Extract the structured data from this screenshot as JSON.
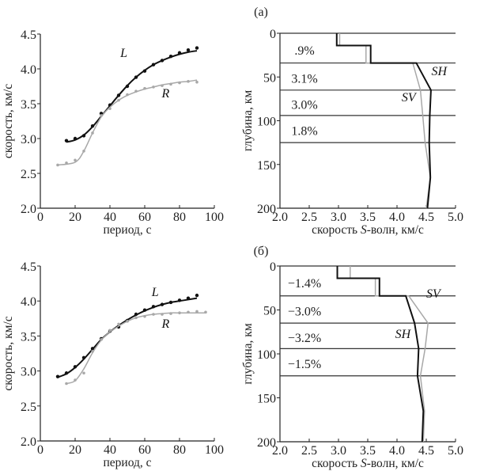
{
  "panels": [
    "(а)",
    "(б)"
  ],
  "chart_data": [
    {
      "type": "scatter",
      "panel": "(а)",
      "xlabel": "период, с",
      "ylabel": "скорость, км/с",
      "xlim": [
        0,
        100
      ],
      "ylim": [
        2.0,
        4.5
      ],
      "xticks": [
        "0",
        "20",
        "40",
        "60",
        "80",
        "100"
      ],
      "yticks": [
        "2.0",
        "2.5",
        "3.0",
        "3.5",
        "4.0",
        "4.5"
      ],
      "series": [
        {
          "name": "L",
          "color": "#111111",
          "x": [
            15,
            20,
            25,
            30,
            35,
            40,
            45,
            50,
            55,
            60,
            65,
            70,
            75,
            80,
            85,
            90
          ],
          "y": [
            2.97,
            3.0,
            3.04,
            3.18,
            3.36,
            3.48,
            3.62,
            3.75,
            3.88,
            3.97,
            4.06,
            4.12,
            4.18,
            4.23,
            4.27,
            4.3
          ],
          "fit_x": [
            15,
            20,
            25,
            30,
            35,
            40,
            45,
            50,
            55,
            60,
            65,
            70,
            75,
            80,
            85,
            90
          ],
          "fit_y": [
            2.95,
            2.98,
            3.05,
            3.17,
            3.32,
            3.47,
            3.62,
            3.76,
            3.88,
            3.98,
            4.06,
            4.12,
            4.17,
            4.21,
            4.24,
            4.26
          ]
        },
        {
          "name": "R",
          "color": "#a8a8a8",
          "x": [
            10,
            15,
            20,
            25,
            30,
            35,
            40,
            45,
            50,
            55,
            60,
            65,
            70,
            75,
            80,
            85,
            90
          ],
          "y": [
            2.62,
            2.65,
            2.69,
            2.82,
            3.08,
            3.33,
            3.43,
            3.55,
            3.63,
            3.68,
            3.72,
            3.74,
            3.76,
            3.78,
            3.8,
            3.82,
            3.81
          ],
          "fit_x": [
            10,
            20,
            25,
            30,
            35,
            40,
            45,
            50,
            55,
            60,
            65,
            70,
            75,
            80,
            85,
            90
          ],
          "fit_y": [
            2.62,
            2.66,
            2.82,
            3.08,
            3.31,
            3.45,
            3.55,
            3.62,
            3.67,
            3.71,
            3.74,
            3.77,
            3.79,
            3.81,
            3.82,
            3.84
          ]
        }
      ],
      "annotations": [
        {
          "text": "L",
          "x": 48,
          "y": 4.17
        },
        {
          "text": "R",
          "x": 72,
          "y": 3.59
        }
      ]
    },
    {
      "type": "line",
      "panel": "(а)",
      "xlabel": "скорость S-волн, км/с",
      "ylabel": "глубина, км",
      "xlim": [
        2.0,
        5.0
      ],
      "ylim": [
        0,
        200
      ],
      "y_inverted": true,
      "xticks": [
        "2.0",
        "2.5",
        "3.0",
        "3.5",
        "4.0",
        "4.5",
        "5.0"
      ],
      "yticks": [
        "0",
        "50",
        "100",
        "150",
        "200"
      ],
      "layer_boundaries": [
        0,
        34,
        65,
        94,
        125
      ],
      "layer_labels": [
        {
          "text": ".9%",
          "depth": 19
        },
        {
          "text": "3.1%",
          "depth": 51
        },
        {
          "text": "3.0%",
          "depth": 81
        },
        {
          "text": "1.8%",
          "depth": 111
        }
      ],
      "series": [
        {
          "name": "SV",
          "color": "#a8a8a8",
          "velocity": [
            3.02,
            3.02,
            3.47,
            3.47,
            4.27,
            4.4,
            4.44,
            4.48,
            4.57,
            4.5
          ],
          "depth": [
            0,
            14,
            14,
            34,
            34,
            65,
            94,
            125,
            165,
            200
          ]
        },
        {
          "name": "SH",
          "color": "#111111",
          "velocity": [
            2.97,
            2.97,
            3.55,
            3.55,
            4.33,
            4.58,
            4.56,
            4.55,
            4.57,
            4.52
          ],
          "depth": [
            0,
            14,
            14,
            34,
            34,
            65,
            94,
            125,
            165,
            200
          ]
        }
      ],
      "annotations": [
        {
          "text": "SH",
          "x": 4.72,
          "y": 48
        },
        {
          "text": "SV",
          "x": 4.2,
          "y": 78
        }
      ]
    },
    {
      "type": "scatter",
      "panel": "(б)",
      "xlabel": "период, с",
      "ylabel": "скорость, км/с",
      "xlim": [
        0,
        100
      ],
      "ylim": [
        2.0,
        4.5
      ],
      "xticks": [
        "0",
        "20",
        "40",
        "60",
        "80",
        "100"
      ],
      "yticks": [
        "2.0",
        "2.5",
        "3.0",
        "3.5",
        "4.0",
        "4.5"
      ],
      "series": [
        {
          "name": "L",
          "color": "#111111",
          "x": [
            10,
            15,
            20,
            25,
            30,
            35,
            40,
            45,
            50,
            55,
            60,
            65,
            70,
            75,
            80,
            85,
            90
          ],
          "y": [
            2.92,
            2.97,
            3.06,
            3.19,
            3.32,
            3.46,
            3.57,
            3.63,
            3.72,
            3.81,
            3.87,
            3.92,
            3.95,
            3.98,
            4.01,
            4.04,
            4.08
          ],
          "fit_x": [
            10,
            15,
            20,
            25,
            30,
            35,
            40,
            45,
            50,
            55,
            60,
            65,
            70,
            75,
            80,
            85,
            90
          ],
          "fit_y": [
            2.91,
            2.96,
            3.05,
            3.17,
            3.31,
            3.45,
            3.56,
            3.65,
            3.73,
            3.8,
            3.86,
            3.91,
            3.95,
            3.98,
            4.0,
            4.02,
            4.04
          ]
        },
        {
          "name": "R",
          "color": "#a8a8a8",
          "x": [
            15,
            20,
            25,
            30,
            35,
            40,
            45,
            50,
            55,
            60,
            65,
            70,
            75,
            80,
            85,
            90,
            95
          ],
          "y": [
            2.82,
            2.87,
            2.97,
            3.28,
            3.45,
            3.58,
            3.67,
            3.71,
            3.76,
            3.78,
            3.81,
            3.81,
            3.82,
            3.83,
            3.84,
            3.85,
            3.84
          ],
          "fit_x": [
            15,
            20,
            25,
            30,
            35,
            40,
            45,
            50,
            55,
            60,
            65,
            70,
            75,
            80,
            85,
            90,
            95
          ],
          "fit_y": [
            2.82,
            2.86,
            3.03,
            3.26,
            3.44,
            3.56,
            3.64,
            3.71,
            3.76,
            3.79,
            3.81,
            3.82,
            3.83,
            3.83,
            3.83,
            3.83,
            3.83
          ]
        }
      ],
      "annotations": [
        {
          "text": "L",
          "x": 66,
          "y": 4.07
        },
        {
          "text": "R",
          "x": 72,
          "y": 3.62
        }
      ]
    },
    {
      "type": "line",
      "panel": "(б)",
      "xlabel": "скорость S-волн, км/с",
      "ylabel": "глубина, км",
      "xlim": [
        2.0,
        5.0
      ],
      "ylim": [
        0,
        200
      ],
      "y_inverted": true,
      "xticks": [
        "2.0",
        "2.5",
        "3.0",
        "3.5",
        "4.0",
        "4.5",
        "5.0"
      ],
      "yticks": [
        "0",
        "50",
        "100",
        "150",
        "200"
      ],
      "layer_boundaries": [
        0,
        34,
        65,
        94,
        125
      ],
      "layer_labels": [
        {
          "text": "−1.4%",
          "depth": 19
        },
        {
          "text": "−3.0%",
          "depth": 51
        },
        {
          "text": "−3.2%",
          "depth": 81
        },
        {
          "text": "−1.5%",
          "depth": 111
        }
      ],
      "series": [
        {
          "name": "SV",
          "color": "#a8a8a8",
          "velocity": [
            3.2,
            3.2,
            3.63,
            3.63,
            4.2,
            4.53,
            4.48,
            4.4,
            4.47,
            4.45
          ],
          "depth": [
            0,
            14,
            14,
            34,
            34,
            65,
            94,
            125,
            165,
            200
          ]
        },
        {
          "name": "SH",
          "color": "#111111",
          "velocity": [
            2.98,
            2.98,
            3.7,
            3.7,
            4.15,
            4.3,
            4.37,
            4.35,
            4.45,
            4.43
          ],
          "depth": [
            0,
            14,
            14,
            34,
            34,
            65,
            94,
            125,
            165,
            200
          ]
        }
      ],
      "annotations": [
        {
          "text": "SV",
          "x": 4.62,
          "y": 36
        },
        {
          "text": "SH",
          "x": 4.1,
          "y": 82
        }
      ]
    }
  ]
}
